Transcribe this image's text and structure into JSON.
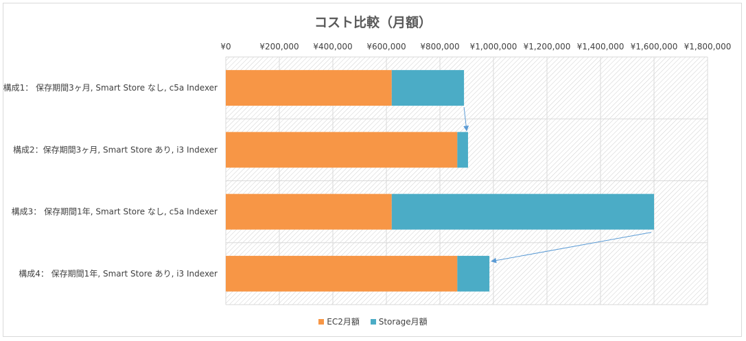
{
  "chart_data": {
    "type": "bar",
    "orientation": "horizontal",
    "stacked": true,
    "title": "コスト比較（月額）",
    "xlim": [
      0,
      1800000
    ],
    "x_ticks": [
      "¥0",
      "¥200,000",
      "¥400,000",
      "¥600,000",
      "¥800,000",
      "¥1,000,000",
      "¥1,200,000",
      "¥1,400,000",
      "¥1,600,000",
      "¥1,800,000"
    ],
    "x_tick_values": [
      0,
      200000,
      400000,
      600000,
      800000,
      1000000,
      1200000,
      1400000,
      1600000,
      1800000
    ],
    "grid": true,
    "legend_position": "bottom",
    "categories": [
      "構成1： 保存期間3ヶ月, Smart Store なし, c5a Indexer",
      "構成2：保存期間3ヶ月, Smart Store あり, i3 Indexer",
      "構成3： 保存期間1年, Smart Store なし, c5a Indexer",
      "構成4： 保存期間1年, Smart Store あり, i3 Indexer"
    ],
    "series": [
      {
        "name": "EC2月額",
        "color": "#F79646",
        "values": [
          620000,
          865000,
          620000,
          865000
        ]
      },
      {
        "name": "Storage月額",
        "color": "#4BACC6",
        "values": [
          270000,
          40000,
          980000,
          120000
        ]
      }
    ],
    "annotations": [
      {
        "type": "arrow",
        "from_category": 0,
        "to_category": 1
      },
      {
        "type": "arrow",
        "from_category": 2,
        "to_category": 3
      }
    ]
  }
}
